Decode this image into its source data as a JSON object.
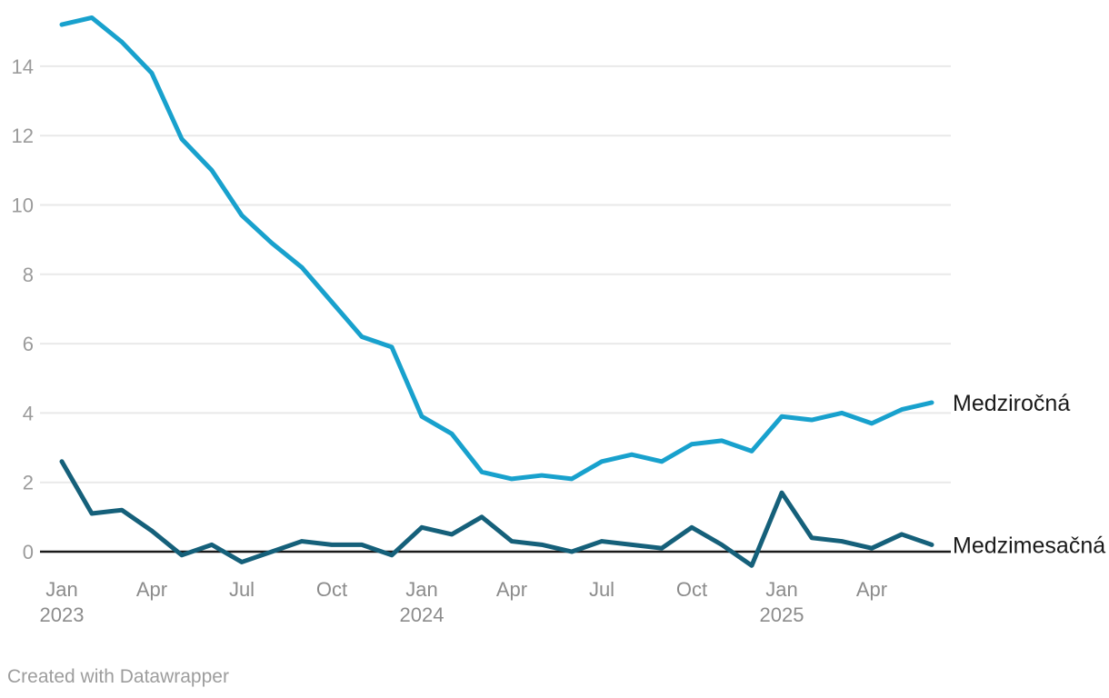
{
  "chart_data": {
    "type": "line",
    "title": "",
    "x": [
      "2023-01",
      "2023-02",
      "2023-03",
      "2023-04",
      "2023-05",
      "2023-06",
      "2023-07",
      "2023-08",
      "2023-09",
      "2023-10",
      "2023-11",
      "2023-12",
      "2024-01",
      "2024-02",
      "2024-03",
      "2024-04",
      "2024-05",
      "2024-06",
      "2024-07",
      "2024-08",
      "2024-09",
      "2024-10",
      "2024-11",
      "2024-12",
      "2025-01",
      "2025-02",
      "2025-03",
      "2025-04",
      "2025-05",
      "2025-06"
    ],
    "x_tick_labels": [
      {
        "index": 0,
        "label": "Jan",
        "year": "2023"
      },
      {
        "index": 3,
        "label": "Apr"
      },
      {
        "index": 6,
        "label": "Jul"
      },
      {
        "index": 9,
        "label": "Oct"
      },
      {
        "index": 12,
        "label": "Jan",
        "year": "2024"
      },
      {
        "index": 15,
        "label": "Apr"
      },
      {
        "index": 18,
        "label": "Jul"
      },
      {
        "index": 21,
        "label": "Oct"
      },
      {
        "index": 24,
        "label": "Jan",
        "year": "2025"
      },
      {
        "index": 27,
        "label": "Apr"
      }
    ],
    "y_ticks": [
      0,
      2,
      4,
      6,
      8,
      10,
      12,
      14
    ],
    "ylim": [
      -0.6,
      15.6
    ],
    "grid": "horizontal",
    "legend_position": "line-end-right",
    "series": [
      {
        "name": "Medziročná",
        "color": "#18a1cd",
        "values": [
          15.2,
          15.4,
          14.7,
          13.8,
          11.9,
          11.0,
          9.7,
          8.9,
          8.2,
          7.2,
          6.2,
          5.9,
          3.9,
          3.4,
          2.3,
          2.1,
          2.2,
          2.1,
          2.6,
          2.8,
          2.6,
          3.1,
          3.2,
          2.9,
          3.9,
          3.8,
          4.0,
          3.7,
          4.1,
          4.3
        ]
      },
      {
        "name": "Medzimesačná",
        "color": "#15607a",
        "values": [
          2.6,
          1.1,
          1.2,
          0.6,
          -0.1,
          0.2,
          -0.3,
          0.0,
          0.3,
          0.2,
          0.2,
          -0.1,
          0.7,
          0.5,
          1.0,
          0.3,
          0.2,
          0.0,
          0.3,
          0.2,
          0.1,
          0.7,
          0.2,
          -0.4,
          1.7,
          0.4,
          0.3,
          0.1,
          0.5,
          0.2
        ]
      }
    ]
  },
  "colors": {
    "background": "#ffffff",
    "grid": "#e9e9e9",
    "zero_line": "#1a1a1a",
    "y_axis_text": "#9b9b9b",
    "x_axis_text": "#8c8c8c",
    "series_label_text": "#1a1a1a"
  },
  "footer": {
    "credit": "Created with Datawrapper"
  }
}
